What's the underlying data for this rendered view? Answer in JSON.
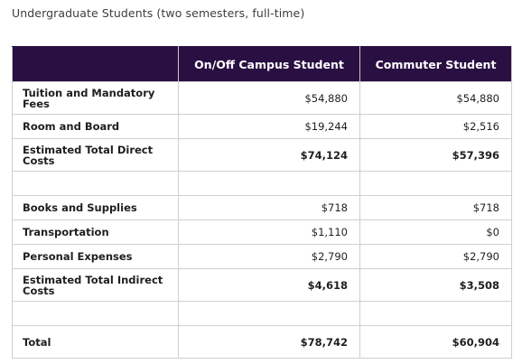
{
  "caption": "Undergraduate Students (two semesters, full-time)",
  "columns": {
    "campus": "On/Off Campus Student",
    "commuter": "Commuter Student"
  },
  "rows": [
    {
      "label": "Tuition and Mandatory Fees",
      "campus": "$54,880",
      "commuter": "$54,880"
    },
    {
      "label": "Room and Board",
      "campus": "$19,244",
      "commuter": "$2,516"
    },
    {
      "label": "Estimated Total Direct Costs",
      "campus": "$74,124",
      "commuter": "$57,396"
    },
    {
      "label": "",
      "campus": "",
      "commuter": ""
    },
    {
      "label": "Books and Supplies",
      "campus": "$718",
      "commuter": "$718"
    },
    {
      "label": "Transportation",
      "campus": "$1,110",
      "commuter": "$0"
    },
    {
      "label": "Personal Expenses",
      "campus": "$2,790",
      "commuter": "$2,790"
    },
    {
      "label": "Estimated Total Indirect Costs",
      "campus": "$4,618",
      "commuter": "$3,508"
    },
    {
      "label": "",
      "campus": "",
      "commuter": ""
    },
    {
      "label": "Total",
      "campus": "$78,742",
      "commuter": "$60,904"
    }
  ]
}
